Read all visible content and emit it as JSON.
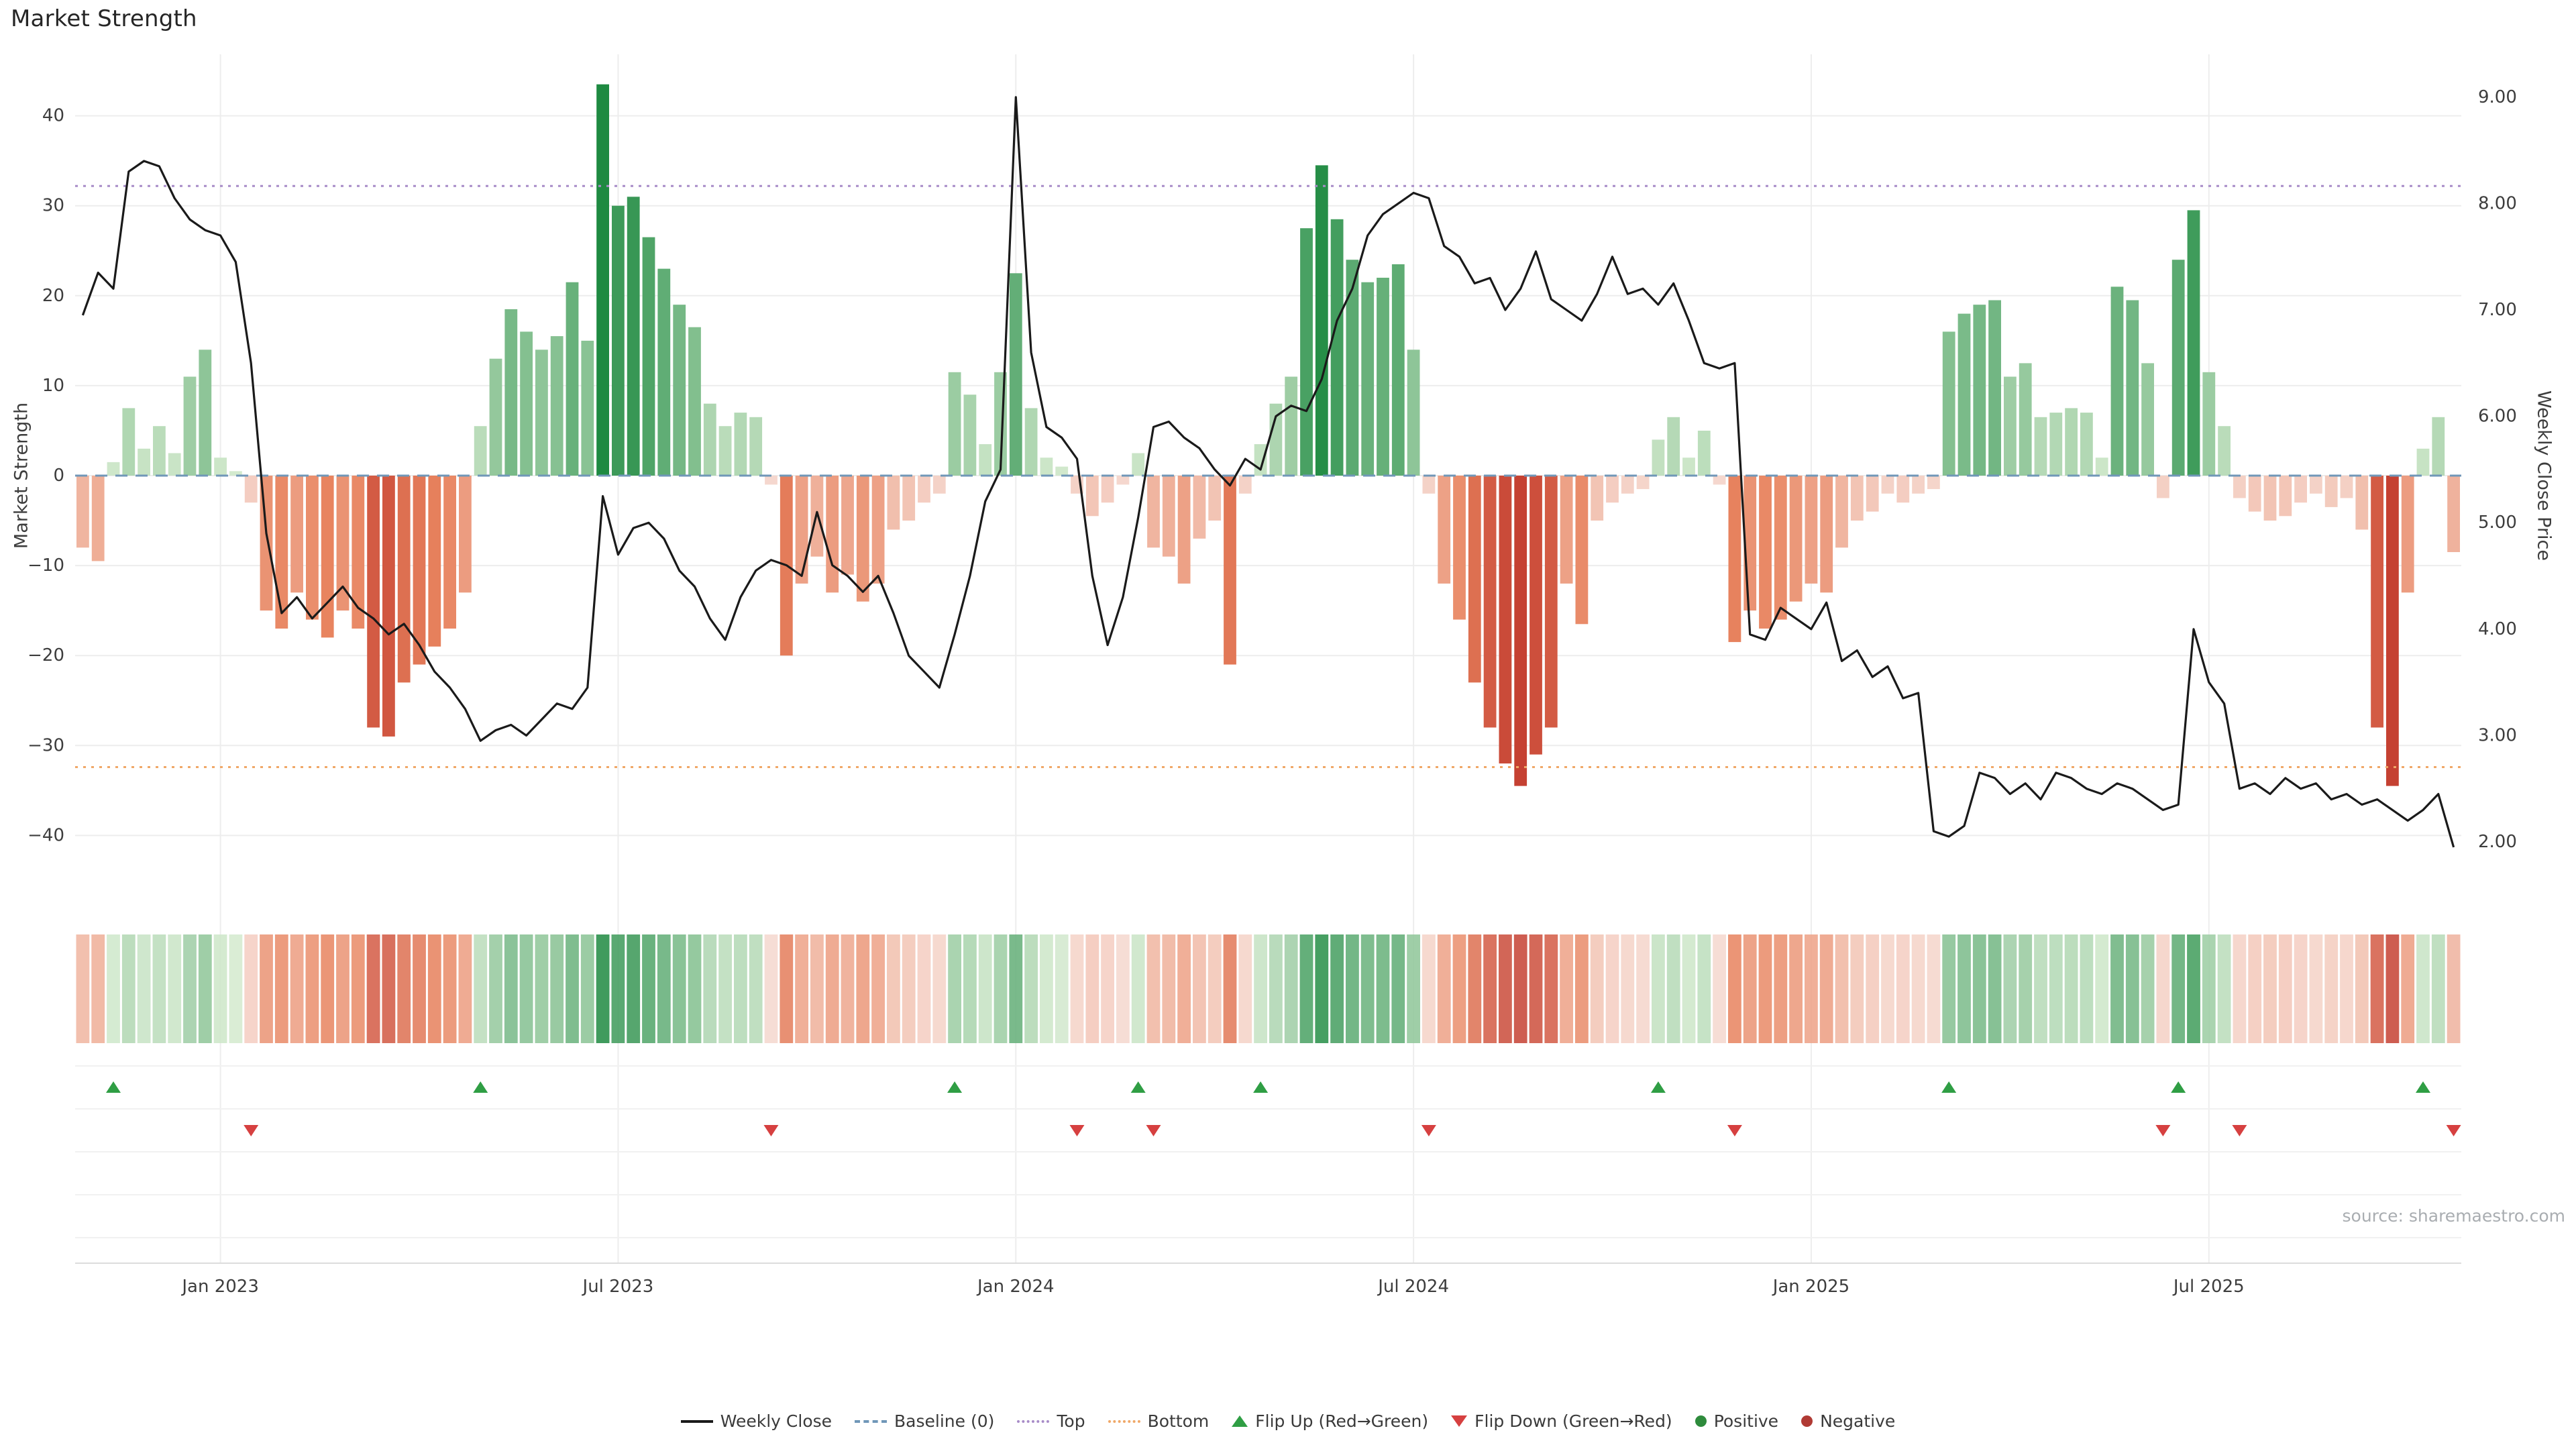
{
  "title": "Market Strength",
  "source": "source: sharemaestro.com",
  "colors": {
    "line": "#1a1a1a",
    "baseline": "#7097b8",
    "top": "#a88cc8",
    "bottom": "#f0a868",
    "flip_up": "#2f9e44",
    "flip_down": "#d64040",
    "positive": "#2e8b3c",
    "negative": "#b03a34",
    "bar_positive_light": "#d6ebd0",
    "bar_positive_dark": "#1e8a41",
    "bar_negative_light": "#f6dcd4",
    "bar_negative_mid": "#e8845f",
    "bar_negative_dark": "#c23b2e",
    "grid": "#ededed",
    "tick_text": "#3d3d3d"
  },
  "axes": {
    "left_label": "Market Strength",
    "right_label": "Weekly Close Price",
    "left_ticks": [
      40,
      30,
      20,
      10,
      0,
      -10,
      -20,
      -30,
      -40
    ],
    "right_ticks": [
      "9.00",
      "8.00",
      "7.00",
      "6.00",
      "5.00",
      "4.00",
      "3.00",
      "2.00"
    ]
  },
  "legend": [
    {
      "key": "weekly-close",
      "type": "line",
      "label": "Weekly Close",
      "color": "#1a1a1a"
    },
    {
      "key": "baseline",
      "type": "dashed-line",
      "label": "Baseline (0)",
      "color": "#7097b8"
    },
    {
      "key": "top",
      "type": "dotted-line",
      "label": "Top",
      "color": "#a88cc8"
    },
    {
      "key": "bottom",
      "type": "dotted-line",
      "label": "Bottom",
      "color": "#f0a868"
    },
    {
      "key": "flip-up",
      "type": "triangle-up",
      "label": "Flip Up (Red→Green)",
      "color": "#2f9e44"
    },
    {
      "key": "flip-down",
      "type": "triangle-down",
      "label": "Flip Down (Green→Red)",
      "color": "#d64040"
    },
    {
      "key": "positive",
      "type": "dot",
      "label": "Positive",
      "color": "#2e8b3c"
    },
    {
      "key": "negative",
      "type": "dot",
      "label": "Negative",
      "color": "#b03a34"
    }
  ],
  "chart_data": {
    "type": "bar+line",
    "title": "Market Strength",
    "weeks": 156,
    "x_ticks": [
      {
        "label": "Jan 2023",
        "week": 9
      },
      {
        "label": "Jul 2023",
        "week": 35
      },
      {
        "label": "Jan 2024",
        "week": 61
      },
      {
        "label": "Jul 2024",
        "week": 87
      },
      {
        "label": "Jan 2025",
        "week": 113
      },
      {
        "label": "Jul 2025",
        "week": 139
      }
    ],
    "left_axis": {
      "label": "Market Strength",
      "range": [
        -47,
        47
      ]
    },
    "right_axis": {
      "label": "Weekly Close Price",
      "range": [
        1.9,
        9.05
      ]
    },
    "reference_lines": {
      "baseline": 0,
      "top": 32.2,
      "bottom": -32.4
    },
    "series": [
      {
        "name": "Market Strength",
        "type": "bar",
        "axis": "left",
        "values": [
          -8,
          -9.5,
          1.5,
          7.5,
          3,
          5.5,
          2.5,
          11,
          14,
          2,
          0.5,
          -3,
          -15,
          -17,
          -13,
          -16,
          -18,
          -15,
          -17,
          -28,
          -29,
          -23,
          -21,
          -19,
          -17,
          -13,
          5.5,
          13,
          18.5,
          16,
          14,
          15.5,
          21.5,
          15,
          43.5,
          30,
          31,
          26.5,
          23,
          19,
          16.5,
          8,
          5.5,
          7,
          6.5,
          -1,
          -20,
          -12,
          -9,
          -13,
          -11,
          -14,
          -12,
          -6,
          -5,
          -3,
          -2,
          11.5,
          9,
          3.5,
          11.5,
          22.5,
          7.5,
          2,
          1,
          -2,
          -4.5,
          -3,
          -1,
          2.5,
          -8,
          -9,
          -12,
          -7,
          -5,
          -21,
          -2,
          3.5,
          8,
          11,
          27.5,
          34.5,
          28.5,
          24,
          21.5,
          22,
          23.5,
          14,
          -2,
          -12,
          -16,
          -23,
          -28,
          -32,
          -34.5,
          -31,
          -28,
          -12,
          -16.5,
          -5,
          -3,
          -2,
          -1.5,
          4,
          6.5,
          2,
          5,
          -1,
          -18.5,
          -15,
          -17,
          -16,
          -14,
          -12,
          -13,
          -8,
          -5,
          -4,
          -2,
          -3,
          -2,
          -1.5,
          16,
          18,
          19,
          19.5,
          11,
          12.5,
          6.5,
          7,
          7.5,
          7,
          2,
          21,
          19.5,
          12.5,
          -2.5,
          24,
          29.5,
          11.5,
          5.5,
          -2.5,
          -4,
          -5,
          -4.5,
          -3,
          -2,
          -3.5,
          -2.5,
          -6,
          -28,
          -34.5,
          -13,
          3,
          6.5,
          -8.5
        ]
      },
      {
        "name": "Weekly Close",
        "type": "line",
        "axis": "right",
        "values": [
          6.95,
          7.35,
          7.2,
          8.3,
          8.4,
          8.35,
          8.05,
          7.85,
          7.75,
          7.7,
          7.45,
          6.5,
          4.9,
          4.15,
          4.3,
          4.1,
          4.25,
          4.4,
          4.2,
          4.1,
          3.95,
          4.05,
          3.85,
          3.6,
          3.45,
          3.25,
          2.95,
          3.05,
          3.1,
          3.0,
          3.15,
          3.3,
          3.25,
          3.45,
          5.25,
          4.7,
          4.95,
          5.0,
          4.85,
          4.55,
          4.4,
          4.1,
          3.9,
          4.3,
          4.55,
          4.65,
          4.6,
          4.5,
          5.1,
          4.6,
          4.5,
          4.35,
          4.5,
          4.15,
          3.75,
          3.6,
          3.45,
          3.95,
          4.5,
          5.2,
          5.5,
          9.0,
          6.6,
          5.9,
          5.8,
          5.6,
          4.5,
          3.85,
          4.3,
          5.05,
          5.9,
          5.95,
          5.8,
          5.7,
          5.5,
          5.35,
          5.6,
          5.5,
          6.0,
          6.1,
          6.05,
          6.35,
          6.9,
          7.2,
          7.7,
          7.9,
          8.0,
          8.1,
          8.05,
          7.6,
          7.5,
          7.25,
          7.3,
          7.0,
          7.2,
          7.55,
          7.1,
          7.0,
          6.9,
          7.15,
          7.5,
          7.15,
          7.2,
          7.05,
          7.25,
          6.9,
          6.5,
          6.45,
          6.5,
          3.95,
          3.9,
          4.2,
          4.1,
          4.0,
          4.25,
          3.7,
          3.8,
          3.55,
          3.65,
          3.35,
          3.4,
          2.1,
          2.05,
          2.15,
          2.65,
          2.6,
          2.45,
          2.55,
          2.4,
          2.65,
          2.6,
          2.5,
          2.45,
          2.55,
          2.5,
          2.4,
          2.3,
          2.35,
          4.0,
          3.5,
          3.3,
          2.5,
          2.55,
          2.45,
          2.6,
          2.5,
          2.55,
          2.4,
          2.45,
          2.35,
          2.4,
          2.3,
          2.2,
          2.3,
          2.45,
          1.95
        ]
      }
    ],
    "flip_up_weeks": [
      2,
      26,
      57,
      69,
      77,
      103,
      122,
      137,
      153
    ],
    "flip_down_weeks": [
      11,
      45,
      65,
      70,
      88,
      108,
      136,
      141,
      155
    ]
  }
}
